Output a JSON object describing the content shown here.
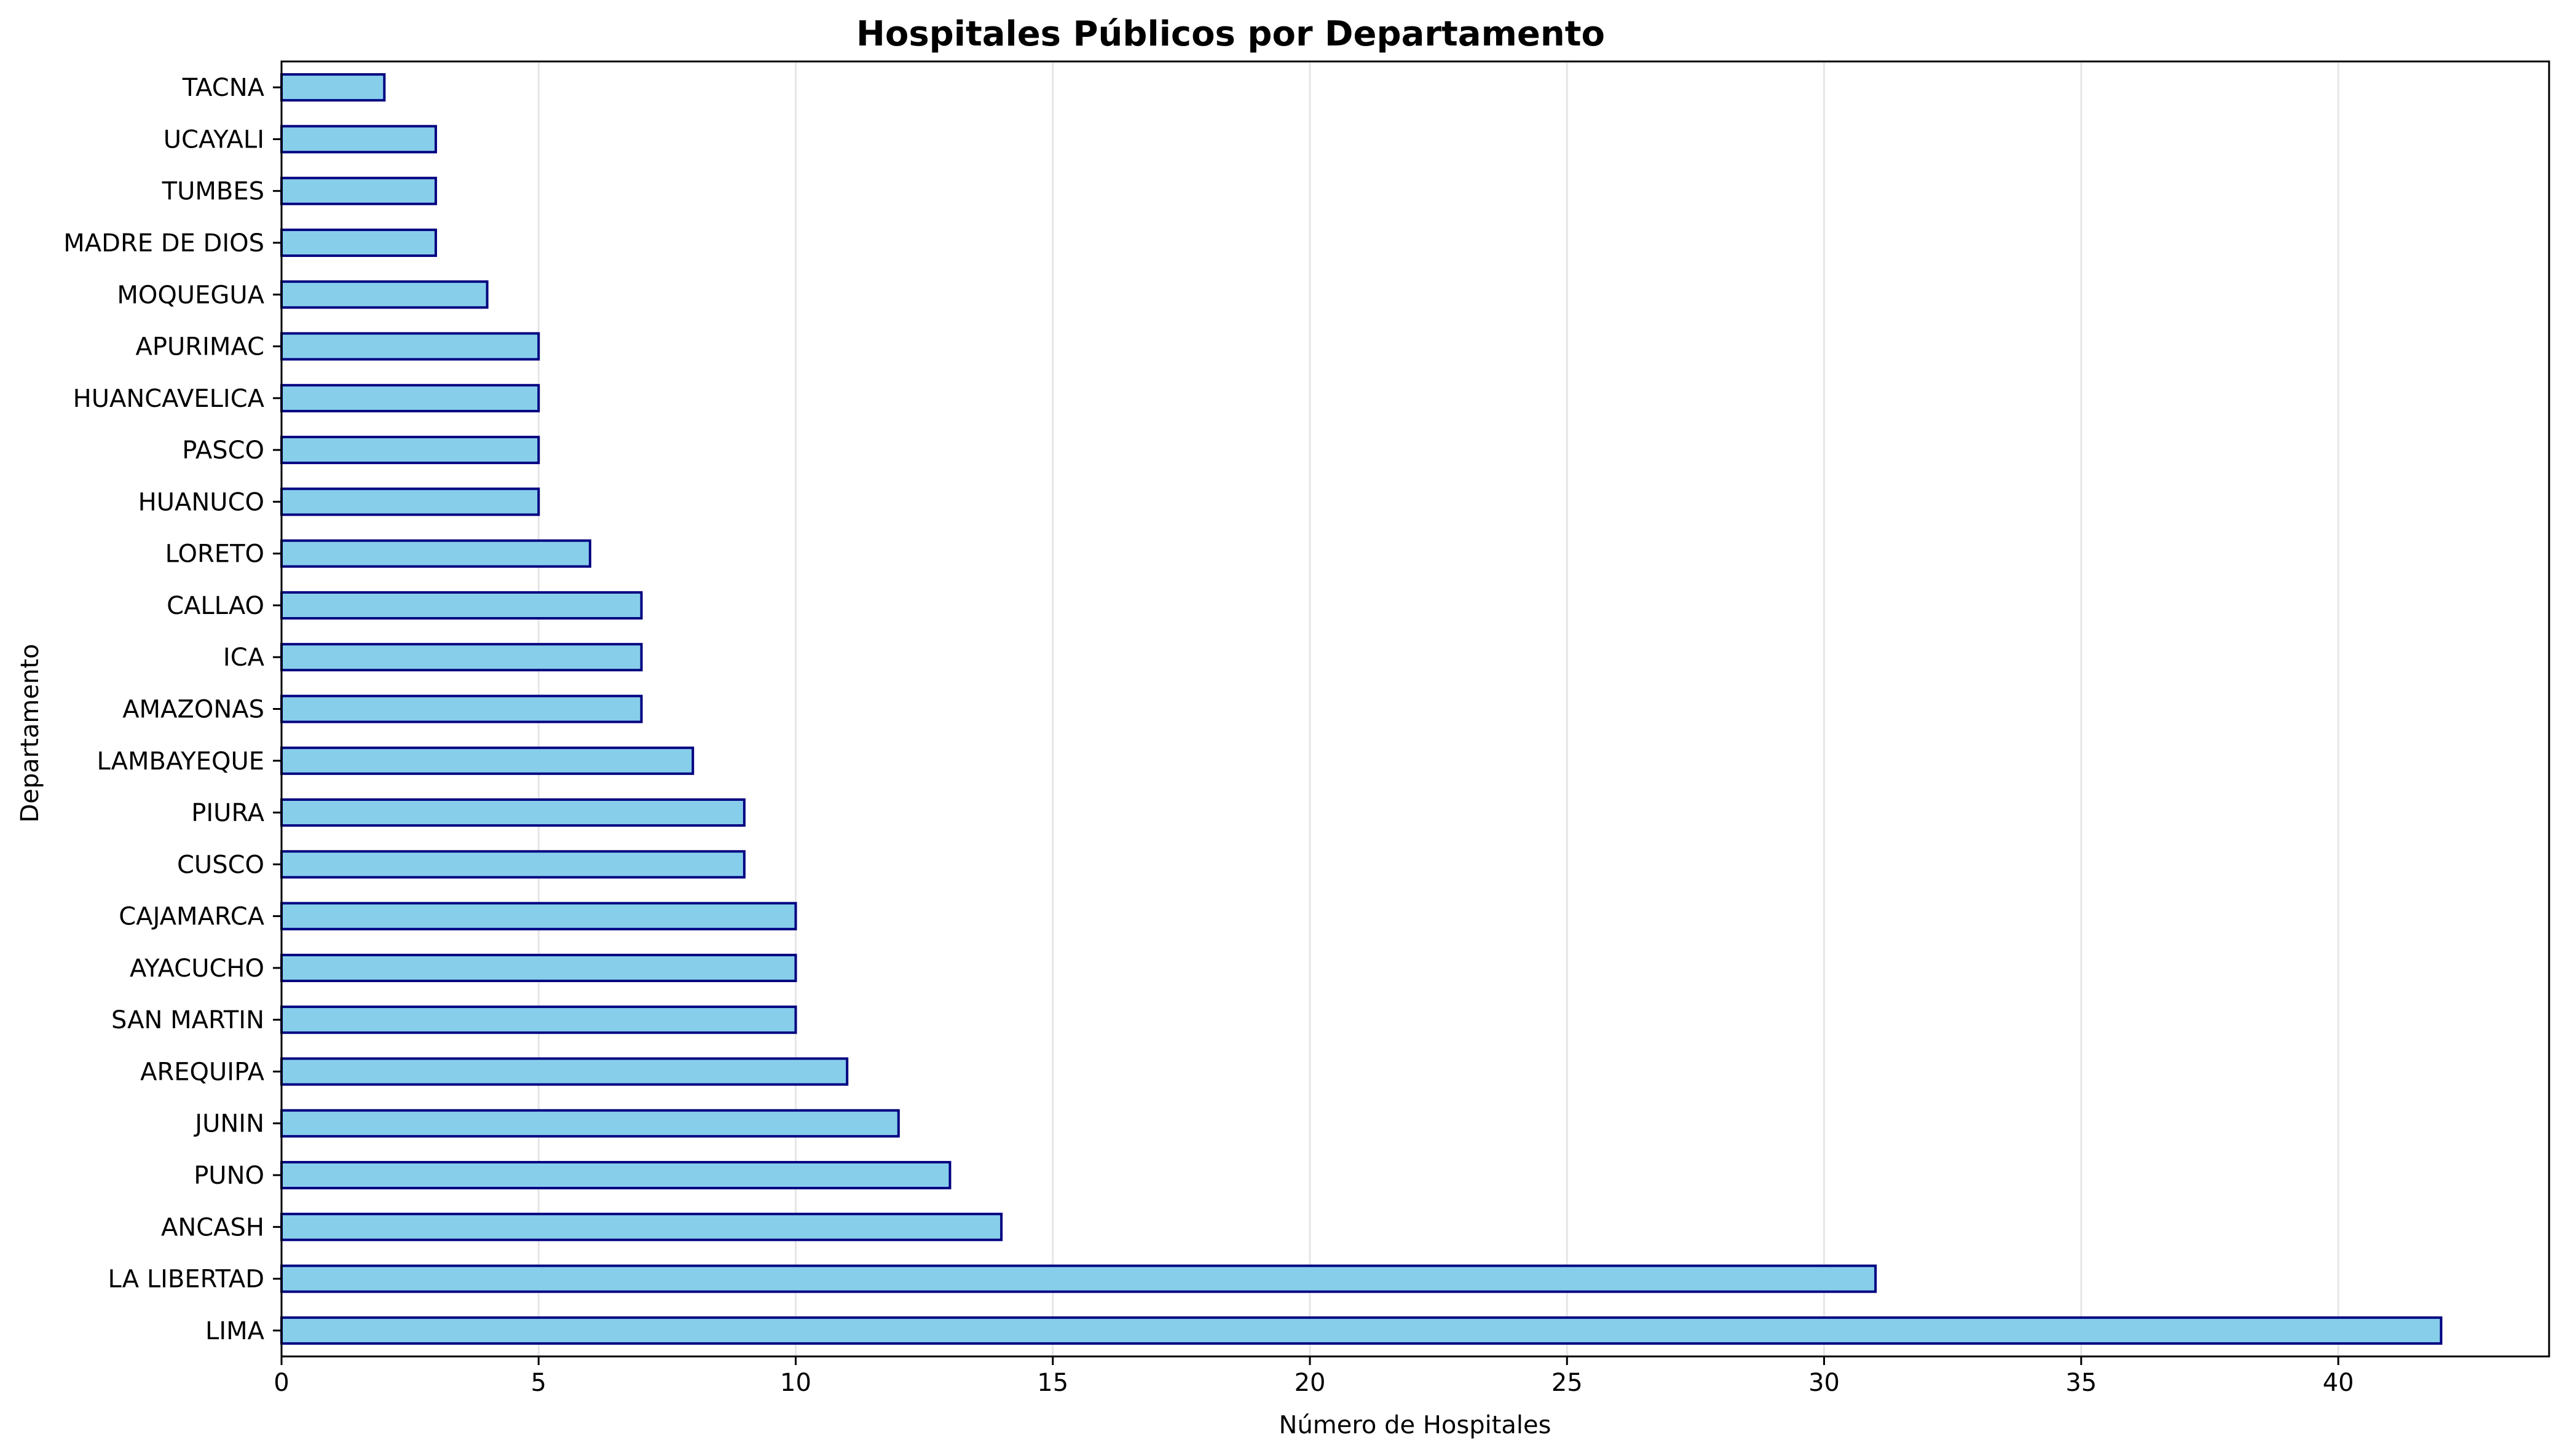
{
  "chart_data": {
    "type": "bar",
    "orientation": "horizontal",
    "title": "Hospitales Públicos por Departamento",
    "xlabel": "Número de Hospitales",
    "ylabel": "Departamento",
    "categories": [
      "LIMA",
      "LA LIBERTAD",
      "ANCASH",
      "PUNO",
      "JUNIN",
      "AREQUIPA",
      "SAN MARTIN",
      "AYACUCHO",
      "CAJAMARCA",
      "CUSCO",
      "PIURA",
      "LAMBAYEQUE",
      "AMAZONAS",
      "ICA",
      "CALLAO",
      "LORETO",
      "HUANUCO",
      "PASCO",
      "HUANCAVELICA",
      "APURIMAC",
      "MOQUEGUA",
      "MADRE DE DIOS",
      "TUMBES",
      "UCAYALI",
      "TACNA"
    ],
    "values": [
      42,
      31,
      14,
      13,
      12,
      11,
      10,
      10,
      10,
      9,
      9,
      8,
      7,
      7,
      7,
      6,
      5,
      5,
      5,
      5,
      4,
      3,
      3,
      3,
      2
    ],
    "xlim": [
      0,
      44.1
    ],
    "xticks": [
      0,
      5,
      10,
      15,
      20,
      25,
      30,
      35,
      40
    ],
    "grid": "x",
    "colors": {
      "bar_fill": "#87CEEB",
      "bar_edge": "#000080",
      "grid": "#e6e6e6",
      "axis": "#000000"
    }
  }
}
